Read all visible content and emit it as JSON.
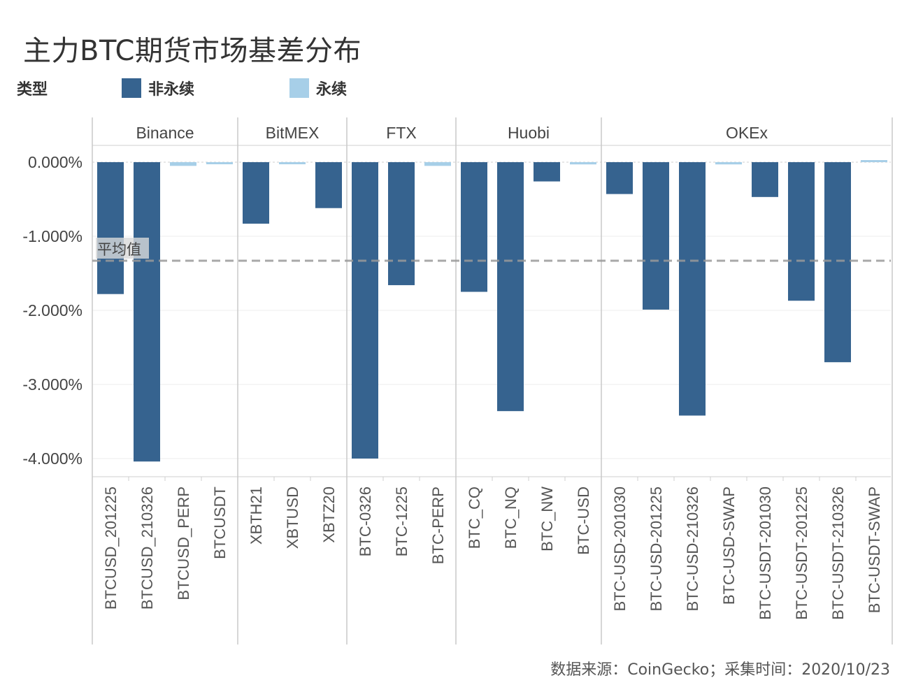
{
  "title": "主力BTC期货市场基差分布",
  "legend": {
    "title": "类型",
    "items": [
      {
        "label": "非永续",
        "color": "#36638f"
      },
      {
        "label": "永续",
        "color": "#a7cfe8"
      }
    ]
  },
  "footer": "数据来源：CoinGecko；采集时间：2020/10/23",
  "chart_data": {
    "type": "bar",
    "ylabel": "",
    "ylim": [
      -4.2,
      0.08
    ],
    "yticks": [
      0,
      -1,
      -2,
      -3,
      -4
    ],
    "ytick_labels": [
      "0.000%",
      "-1.000%",
      "-2.000%",
      "-3.000%",
      "-4.000%"
    ],
    "average": {
      "label": "平均值",
      "value": -1.33
    },
    "groups": [
      {
        "name": "Binance",
        "contracts": [
          {
            "name": "BTCUSD_201225",
            "value": -1.78,
            "type": "非永续"
          },
          {
            "name": "BTCUSD_210326",
            "value": -4.04,
            "type": "非永续"
          },
          {
            "name": "BTCUSD_PERP",
            "value": -0.05,
            "type": "永续"
          },
          {
            "name": "BTCUSDT",
            "value": -0.02,
            "type": "永续"
          }
        ]
      },
      {
        "name": "BitMEX",
        "contracts": [
          {
            "name": "XBTH21",
            "value": -0.83,
            "type": "非永续"
          },
          {
            "name": "XBTUSD",
            "value": -0.02,
            "type": "永续"
          },
          {
            "name": "XBTZ20",
            "value": -0.62,
            "type": "非永续"
          }
        ]
      },
      {
        "name": "FTX",
        "contracts": [
          {
            "name": "BTC-0326",
            "value": -4.0,
            "type": "非永续"
          },
          {
            "name": "BTC-1225",
            "value": -1.66,
            "type": "非永续"
          },
          {
            "name": "BTC-PERP",
            "value": -0.05,
            "type": "永续"
          }
        ]
      },
      {
        "name": "Huobi",
        "contracts": [
          {
            "name": "BTC_CQ",
            "value": -1.75,
            "type": "非永续"
          },
          {
            "name": "BTC_NQ",
            "value": -3.36,
            "type": "非永续"
          },
          {
            "name": "BTC_NW",
            "value": -0.26,
            "type": "非永续"
          },
          {
            "name": "BTC-USD",
            "value": -0.03,
            "type": "永续"
          }
        ]
      },
      {
        "name": "OKEx",
        "contracts": [
          {
            "name": "BTC-USD-201030",
            "value": -0.43,
            "type": "非永续"
          },
          {
            "name": "BTC-USD-201225",
            "value": -1.99,
            "type": "非永续"
          },
          {
            "name": "BTC-USD-210326",
            "value": -3.42,
            "type": "非永续"
          },
          {
            "name": "BTC-USD-SWAP",
            "value": -0.03,
            "type": "永续"
          },
          {
            "name": "BTC-USDT-201030",
            "value": -0.47,
            "type": "非永续"
          },
          {
            "name": "BTC-USDT-201225",
            "value": -1.87,
            "type": "非永续"
          },
          {
            "name": "BTC-USDT-210326",
            "value": -2.7,
            "type": "非永续"
          },
          {
            "name": "BTC-USDT-SWAP",
            "value": 0.02,
            "type": "永续"
          }
        ]
      }
    ]
  }
}
